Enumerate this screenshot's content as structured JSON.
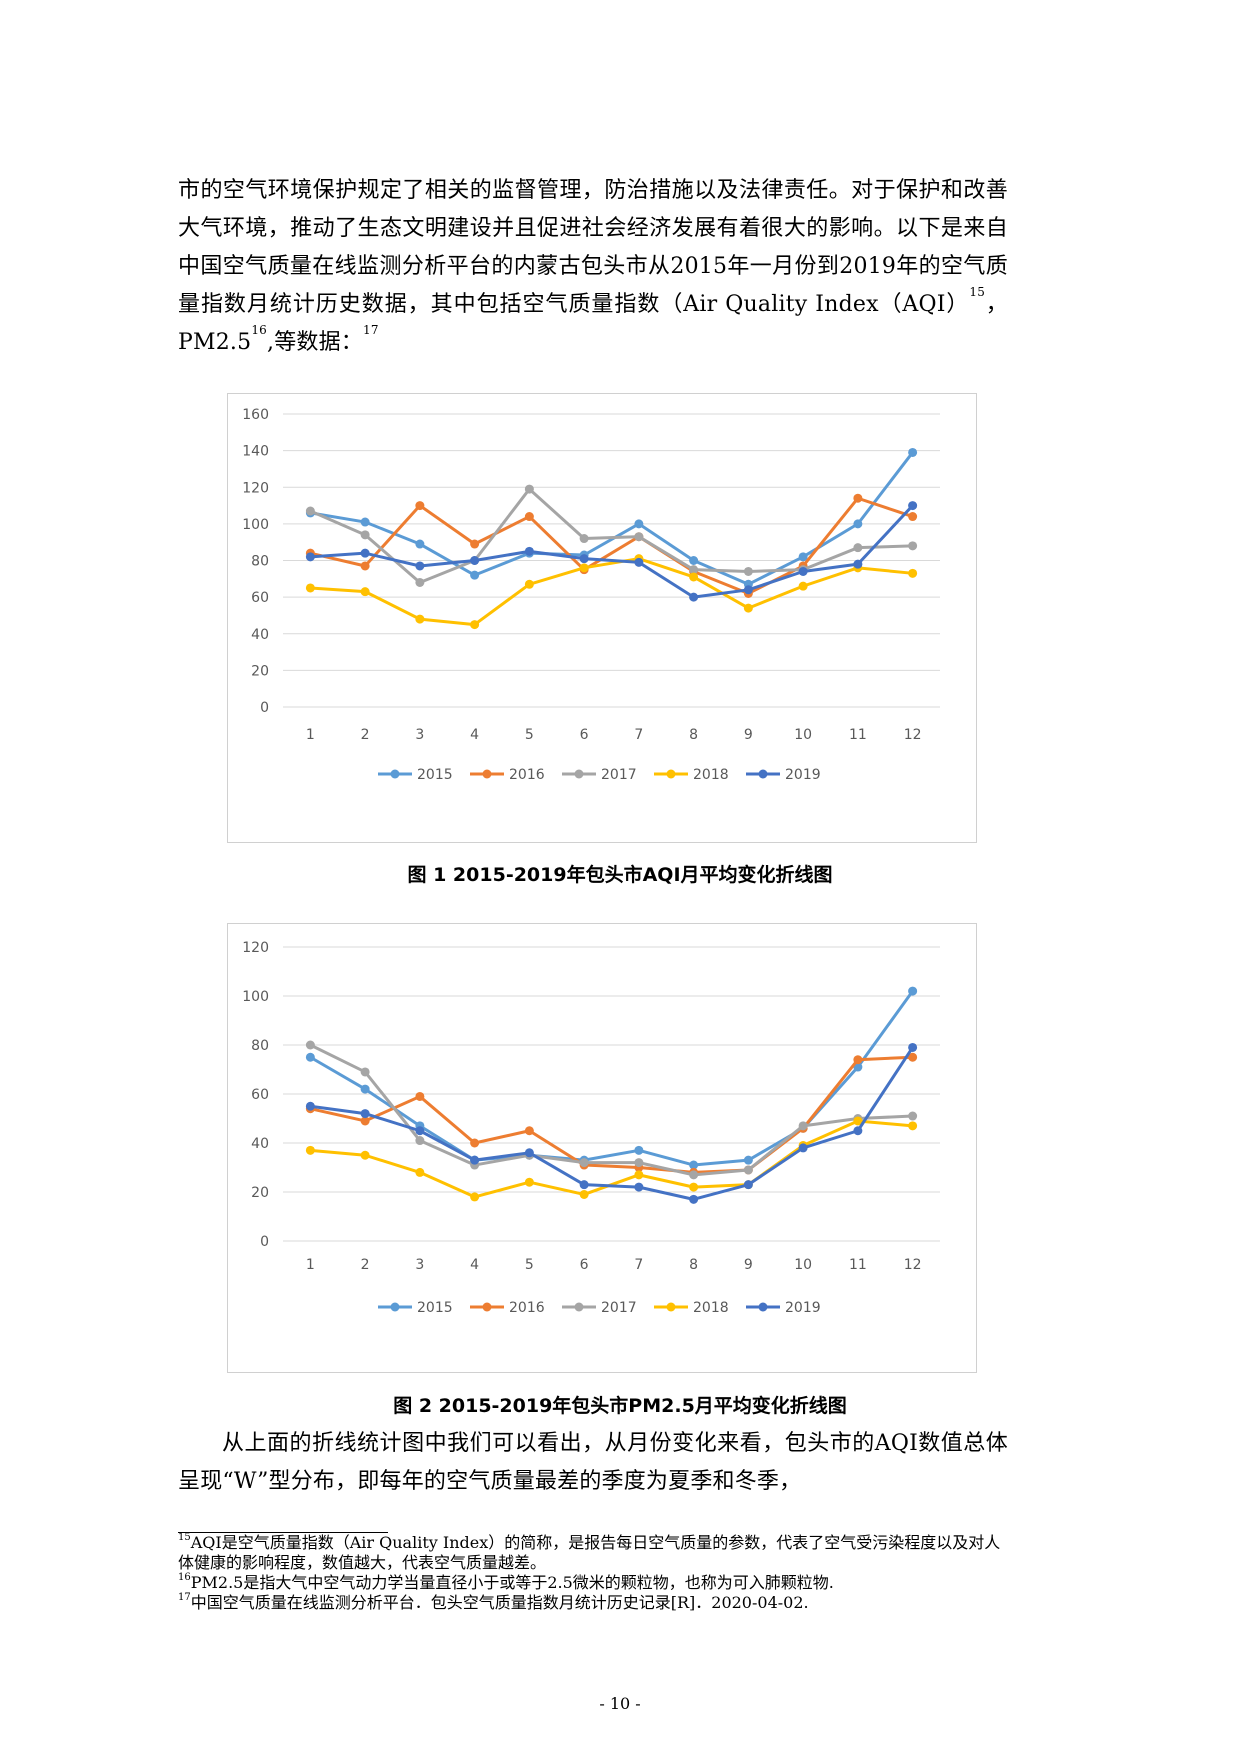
{
  "body": {
    "para1_a": "市的空气环境保护规定了相关的监督管理，防治措施以及法律责任。对于保护和改善大气环境，推动了生态文明建设并且促进社会经济发展有着很大的影响。以下是来自中国空气质量在线监测分析平台的内蒙古包头市从2015年一月份到2019年的空气质量指数月统计历史数据，其中包括空气质量指数（Air Quality Index（AQI）",
    "para1_sup1": "15",
    "para1_b": "，PM2.5",
    "para1_sup2": "16",
    "para1_c": ",等数据：",
    "para1_sup3": "17",
    "para2": "从上面的折线统计图中我们可以看出，从月份变化来看，包头市的AQI数值总体呈现“W”型分布，即每年的空气质量最差的季度为夏季和冬季，"
  },
  "captions": {
    "fig1": "图 1 2015-2019年包头市AQI月平均变化折线图",
    "fig2": "图 2 2015-2019年包头市PM2.5月平均变化折线图"
  },
  "footnotes": [
    {
      "num": "15",
      "text": "AQI是空气质量指数（Air Quality Index）的简称，是报告每日空气质量的参数，代表了空气受污染程度以及对人体健康的影响程度，数值越大，代表空气质量越差。"
    },
    {
      "num": "16",
      "text": "PM2.5是指大气中空气动力学当量直径小于或等于2.5微米的颗粒物，也称为可入肺颗粒物."
    },
    {
      "num": "17",
      "text": "中国空气质量在线监测分析平台．包头空气质量指数月统计历史记录[R]．2020-04-02."
    }
  ],
  "page_number": "- 10 -",
  "chart_data": [
    {
      "type": "line",
      "title": "",
      "categories": [
        "1",
        "2",
        "3",
        "4",
        "5",
        "6",
        "7",
        "8",
        "9",
        "10",
        "11",
        "12"
      ],
      "ylim": [
        0,
        160
      ],
      "yticks": [
        "0",
        "20",
        "40",
        "60",
        "80",
        "100",
        "120",
        "140",
        "160"
      ],
      "grid": true,
      "legend": "bottom",
      "series": [
        {
          "name": "2015",
          "color": "#5b9bd5",
          "values": [
            106,
            101,
            89,
            72,
            84,
            83,
            100,
            80,
            67,
            82,
            100,
            139
          ]
        },
        {
          "name": "2016",
          "color": "#ed7d31",
          "values": [
            84,
            77,
            110,
            89,
            104,
            75,
            93,
            74,
            62,
            77,
            114,
            104
          ]
        },
        {
          "name": "2017",
          "color": "#a5a5a5",
          "values": [
            107,
            94,
            68,
            80,
            119,
            92,
            93,
            75,
            74,
            75,
            87,
            88
          ]
        },
        {
          "name": "2018",
          "color": "#ffc000",
          "values": [
            65,
            63,
            48,
            45,
            67,
            76,
            81,
            71,
            54,
            66,
            76,
            73
          ]
        },
        {
          "name": "2019",
          "color": "#4472c4",
          "values": [
            82,
            84,
            77,
            80,
            85,
            81,
            79,
            60,
            64,
            74,
            78,
            110
          ]
        }
      ]
    },
    {
      "type": "line",
      "title": "",
      "categories": [
        "1",
        "2",
        "3",
        "4",
        "5",
        "6",
        "7",
        "8",
        "9",
        "10",
        "11",
        "12"
      ],
      "ylim": [
        0,
        120
      ],
      "yticks": [
        "0",
        "20",
        "40",
        "60",
        "80",
        "100",
        "120"
      ],
      "grid": true,
      "legend": "bottom",
      "series": [
        {
          "name": "2015",
          "color": "#5b9bd5",
          "values": [
            75,
            62,
            47,
            33,
            35,
            33,
            37,
            31,
            33,
            46,
            71,
            102
          ]
        },
        {
          "name": "2016",
          "color": "#ed7d31",
          "values": [
            54,
            49,
            59,
            40,
            45,
            31,
            30,
            28,
            29,
            46,
            74,
            75
          ]
        },
        {
          "name": "2017",
          "color": "#a5a5a5",
          "values": [
            80,
            69,
            41,
            31,
            35,
            32,
            32,
            27,
            29,
            47,
            50,
            51
          ]
        },
        {
          "name": "2018",
          "color": "#ffc000",
          "values": [
            37,
            35,
            28,
            18,
            24,
            19,
            27,
            22,
            23,
            39,
            49,
            47
          ]
        },
        {
          "name": "2019",
          "color": "#4472c4",
          "values": [
            55,
            52,
            45,
            33,
            36,
            23,
            22,
            17,
            23,
            38,
            45,
            79
          ]
        }
      ]
    }
  ]
}
